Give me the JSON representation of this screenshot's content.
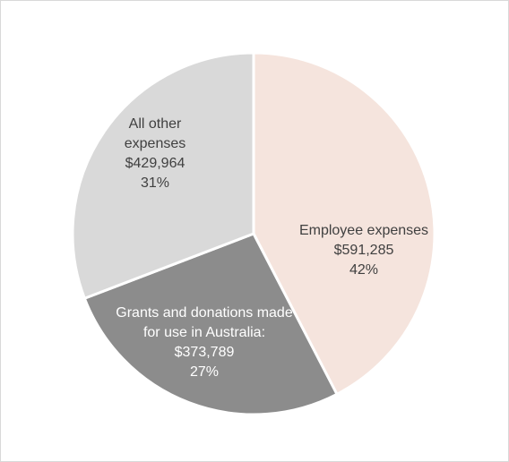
{
  "chart_data": {
    "type": "pie",
    "title": "",
    "slices": [
      {
        "name": "Employee expenses",
        "label_lines": [
          "Employee expenses",
          "$591,285",
          "42%"
        ],
        "value": 591285,
        "percent": 42,
        "color": "#f5e4dd",
        "text_color": "#404040"
      },
      {
        "name": "Grants and donations made for use in Australia",
        "label_lines": [
          "Grants and donations made",
          "for use in Australia:",
          "$373,789",
          "27%"
        ],
        "value": 373789,
        "percent": 27,
        "color": "#8c8c8c",
        "text_color": "#ffffff"
      },
      {
        "name": "All other expenses",
        "label_lines": [
          "All other",
          "expenses",
          "$429,964",
          "31%"
        ],
        "value": 429964,
        "percent": 31,
        "color": "#d9d9d9",
        "text_color": "#404040"
      }
    ],
    "start_angle_deg": 0,
    "direction": "clockwise",
    "slice_border_color": "#ffffff",
    "legend": "none"
  }
}
